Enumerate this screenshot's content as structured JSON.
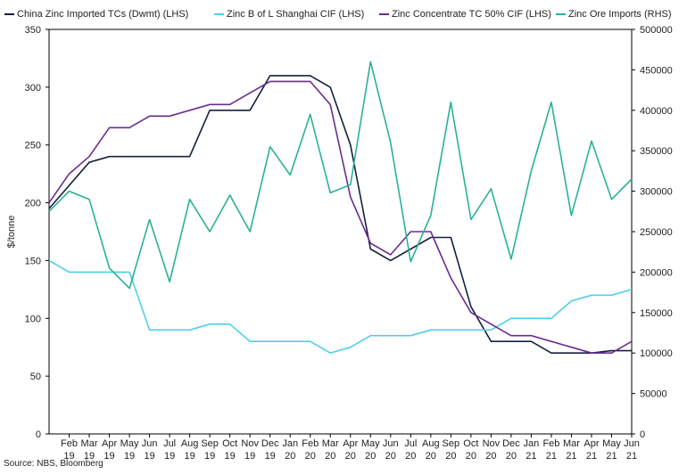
{
  "chart_data": {
    "type": "line",
    "categories": [
      [
        "Feb",
        "19"
      ],
      [
        "Mar",
        "19"
      ],
      [
        "Apr",
        "19"
      ],
      [
        "May",
        "19"
      ],
      [
        "Jun",
        "19"
      ],
      [
        "Jul",
        "19"
      ],
      [
        "Aug",
        "19"
      ],
      [
        "Sep",
        "19"
      ],
      [
        "Oct",
        "19"
      ],
      [
        "Nov",
        "19"
      ],
      [
        "Dec",
        "19"
      ],
      [
        "Jan",
        "20"
      ],
      [
        "Feb",
        "20"
      ],
      [
        "Mar",
        "20"
      ],
      [
        "Apr",
        "20"
      ],
      [
        "May",
        "20"
      ],
      [
        "Jun",
        "20"
      ],
      [
        "Jul",
        "20"
      ],
      [
        "Aug",
        "20"
      ],
      [
        "Sep",
        "20"
      ],
      [
        "Oct",
        "20"
      ],
      [
        "Nov",
        "20"
      ],
      [
        "Dec",
        "20"
      ],
      [
        "Jan",
        "21"
      ],
      [
        "Feb",
        "21"
      ],
      [
        "Mar",
        "21"
      ],
      [
        "Apr",
        "21"
      ],
      [
        "May",
        "21"
      ],
      [
        "Jun",
        "21"
      ]
    ],
    "ylabel": "$/tonne",
    "ylim": [
      0,
      350
    ],
    "yticks": [
      "0",
      "50",
      "100",
      "150",
      "200",
      "250",
      "300",
      "350"
    ],
    "y2lim": [
      0,
      500000
    ],
    "y2ticks": [
      "0",
      "50000",
      "100000",
      "150000",
      "200000",
      "250000",
      "300000",
      "350000",
      "400000",
      "450000",
      "500000"
    ],
    "series": [
      {
        "name": "China Zinc Imported TCs (Dwmt) (LHS)",
        "color": "#14213d",
        "axis": "left",
        "values": [
          null,
          235,
          240,
          240,
          240,
          240,
          240,
          280,
          280,
          280,
          310,
          310,
          310,
          300,
          250,
          160,
          150,
          160,
          170,
          170,
          110,
          80,
          80,
          80,
          70,
          70,
          70,
          72,
          72
        ]
      },
      {
        "name": "Zinc B of L Shanghai CIF (LHS)",
        "color": "#4dd0e8",
        "axis": "left",
        "values": [
          140,
          140,
          140,
          140,
          90,
          90,
          90,
          95,
          95,
          80,
          80,
          80,
          80,
          70,
          75,
          85,
          85,
          85,
          90,
          90,
          90,
          90,
          100,
          100,
          100,
          115,
          120,
          120,
          125
        ]
      },
      {
        "name": "Zinc Concentrate TC 50% CIF (LHS)",
        "color": "#6a2c91",
        "axis": "left",
        "values": [
          225,
          240,
          265,
          265,
          275,
          275,
          280,
          285,
          285,
          295,
          305,
          305,
          305,
          285,
          205,
          165,
          155,
          175,
          175,
          135,
          105,
          95,
          85,
          85,
          80,
          75,
          70,
          70,
          80
        ]
      },
      {
        "name": "Zinc Ore Imports (RHS)",
        "color": "#2ab197",
        "axis": "right",
        "values": [
          300000,
          290000,
          205000,
          180000,
          265000,
          188000,
          290000,
          250000,
          295000,
          250000,
          355000,
          320000,
          395000,
          298000,
          308000,
          460000,
          360000,
          213000,
          270000,
          410000,
          265000,
          303000,
          216000,
          325000,
          410000,
          270000,
          362000,
          290000,
          315000
        ]
      }
    ],
    "start_values": {
      "China Zinc Imported TCs (Dwmt) (LHS)": 195,
      "Zinc B of L Shanghai CIF (LHS)": 150,
      "Zinc Concentrate TC 50% CIF (LHS)": 200,
      "Zinc Ore Imports (RHS)": 275000
    },
    "end_values": {
      "China Zinc Imported TCs (Dwmt) (LHS)": 72
    },
    "legend_position": "top",
    "grid": false
  },
  "source": "Source: NBS, Bloomberg"
}
